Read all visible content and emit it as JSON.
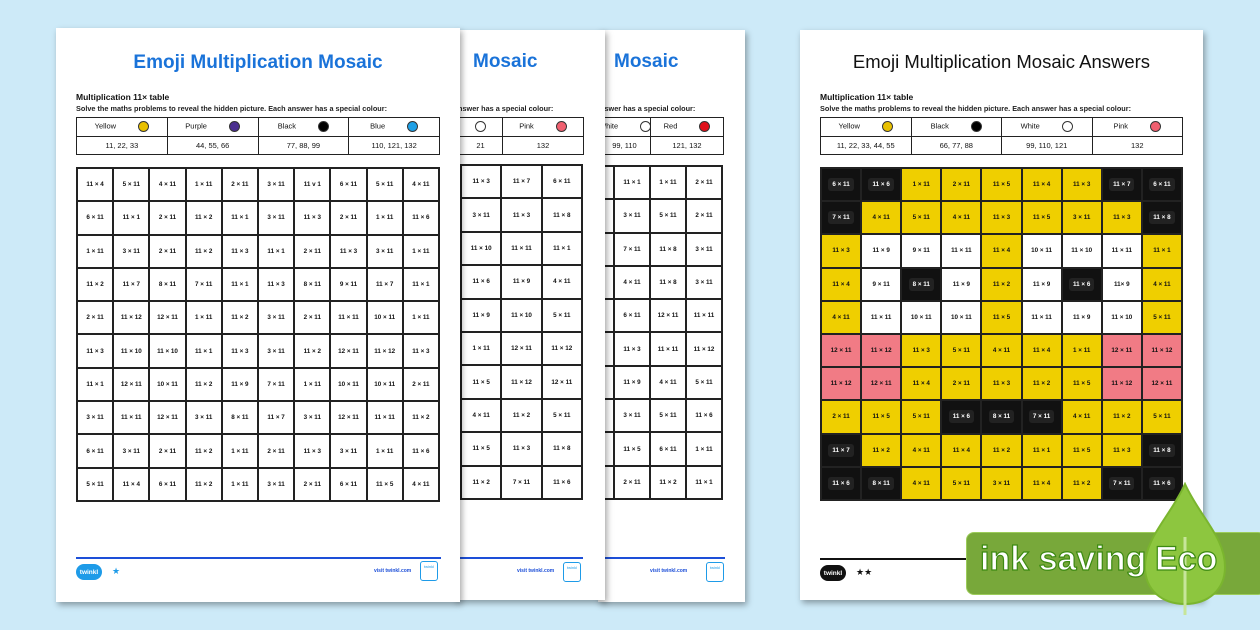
{
  "colors": {
    "background": "#cdeaf8",
    "title_blue": "#1a73d9",
    "yellow": "#efcf00",
    "black": "#111111",
    "white": "#ffffff",
    "pink": "#f17b85",
    "eco_green": "#78a83a",
    "leaf_green": "#8dc63f"
  },
  "sheet1": {
    "title": "Emoji Multiplication Mosaic",
    "subtitle": "Multiplication 11× table",
    "instructions": "Solve the maths problems to reveal the hidden picture. Each answer has a special colour:",
    "key": [
      {
        "label": "Yellow",
        "color": "#e8c000",
        "values": "11, 22, 33"
      },
      {
        "label": "Purple",
        "color": "#4b2f8f",
        "values": "44, 55, 66"
      },
      {
        "label": "Black",
        "color": "#000000",
        "values": "77, 88, 99"
      },
      {
        "label": "Blue",
        "color": "#1ea0e6",
        "values": "110, 121, 132"
      }
    ],
    "grid": [
      [
        "11 × 4",
        "5 × 11",
        "4 × 11",
        "1 × 11",
        "2 × 11",
        "3 × 11",
        "11 v 1",
        "6 × 11",
        "5 × 11",
        "4 × 11"
      ],
      [
        "6 × 11",
        "11 × 1",
        "2 × 11",
        "11 × 2",
        "11 × 1",
        "3 × 11",
        "11 × 3",
        "2 × 11",
        "1 × 11",
        "11 × 6"
      ],
      [
        "1 × 11",
        "3 × 11",
        "2 × 11",
        "11 × 2",
        "11 × 3",
        "11 × 1",
        "2 × 11",
        "11 × 3",
        "3 × 11",
        "1 × 11"
      ],
      [
        "11 × 2",
        "11 × 7",
        "8 × 11",
        "7 × 11",
        "11 × 1",
        "11 × 3",
        "8 × 11",
        "9 × 11",
        "11 × 7",
        "11 × 1"
      ],
      [
        "2 × 11",
        "11 × 12",
        "12 × 11",
        "1 × 11",
        "11 × 2",
        "3 × 11",
        "2 × 11",
        "11 × 11",
        "10 × 11",
        "1 × 11"
      ],
      [
        "11 × 3",
        "11 × 10",
        "11 × 10",
        "11 × 1",
        "11 × 3",
        "3 × 11",
        "11 × 2",
        "12 × 11",
        "11 × 12",
        "11 × 3"
      ],
      [
        "11 × 1",
        "12 × 11",
        "10 × 11",
        "11 × 2",
        "11 × 9",
        "7 × 11",
        "1 × 11",
        "10 × 11",
        "10 × 11",
        "2 × 11"
      ],
      [
        "3 × 11",
        "11 × 11",
        "12 × 11",
        "3 × 11",
        "8 × 11",
        "11 × 7",
        "3 × 11",
        "12 × 11",
        "11 × 11",
        "11 × 2"
      ],
      [
        "6 × 11",
        "3 × 11",
        "2 × 11",
        "11 × 2",
        "1 × 11",
        "2 × 11",
        "11 × 3",
        "3 × 11",
        "1 × 11",
        "11 × 6"
      ],
      [
        "5 × 11",
        "11 × 4",
        "6 × 11",
        "11 × 2",
        "1 × 11",
        "3 × 11",
        "2 × 11",
        "6 × 11",
        "11 × 5",
        "4 × 11"
      ]
    ],
    "logo": "twinkl",
    "stars": "★",
    "visit": "visit twinkl.com"
  },
  "sheet2": {
    "title": "Mosaic",
    "instructions": "nswer has a special colour:",
    "key": [
      {
        "label": "",
        "color": "#ffffff",
        "values": "21"
      },
      {
        "label": "Pink",
        "color": "#f06070",
        "values": "132"
      }
    ],
    "grid": [
      [
        "11 × 3",
        "11 × 7",
        "6 × 11"
      ],
      [
        "3 × 11",
        "11 × 3",
        "11 × 8"
      ],
      [
        "11 × 10",
        "11 × 11",
        "11 × 1"
      ],
      [
        "11 × 6",
        "11 × 9",
        "4 × 11"
      ],
      [
        "11 × 9",
        "11 × 10",
        "5 × 11"
      ],
      [
        "1 × 11",
        "12 × 11",
        "11 × 12"
      ],
      [
        "11 × 5",
        "11 × 12",
        "12 × 11"
      ],
      [
        "4 × 11",
        "11 × 2",
        "5 × 11"
      ],
      [
        "11 × 5",
        "11 × 3",
        "11 × 8"
      ],
      [
        "11 × 2",
        "7 × 11",
        "11 × 6"
      ]
    ],
    "visit": "visit twinkl.com"
  },
  "sheet3": {
    "title": "Mosaic",
    "instructions": "nswer has a special colour:",
    "key": [
      {
        "label": "White",
        "color": "#ffffff",
        "values": "99, 110"
      },
      {
        "label": "Red",
        "color": "#e0101a",
        "values": "121, 132"
      }
    ],
    "grid": [
      [
        "11 × 1",
        "1 × 11",
        "2 × 11"
      ],
      [
        "3 × 11",
        "5 × 11",
        "2 × 11"
      ],
      [
        "7 × 11",
        "11 × 8",
        "3 × 11"
      ],
      [
        "4 × 11",
        "11 × 8",
        "3 × 11"
      ],
      [
        "6 × 11",
        "12 × 11",
        "11 × 11"
      ],
      [
        "11 × 3",
        "11 × 11",
        "11 × 12"
      ],
      [
        "11 × 9",
        "4 × 11",
        "5 × 11"
      ],
      [
        "3 × 11",
        "5 × 11",
        "11 × 6"
      ],
      [
        "11 × 5",
        "6 × 11",
        "1 × 11"
      ],
      [
        "2 × 11",
        "11 × 2",
        "11 × 1"
      ]
    ],
    "visit": "visit twinkl.com"
  },
  "answers": {
    "title": "Emoji Multiplication Mosaic Answers",
    "subtitle": "Multiplication 11× table",
    "instructions": "Solve the maths problems to reveal the hidden picture. Each answer has a special colour:",
    "key": [
      {
        "label": "Yellow",
        "color": "#e8c000",
        "values": "11, 22, 33, 44, 55"
      },
      {
        "label": "Black",
        "color": "#000000",
        "values": "66, 77, 88"
      },
      {
        "label": "White",
        "color": "#ffffff",
        "values": "99, 110, 121"
      },
      {
        "label": "Pink",
        "color": "#f06070",
        "values": "132"
      }
    ],
    "cell_colors": [
      "KKYYYYYKK",
      "KYYYYYYYK",
      "YWWWYWWWY",
      "YWKWYWKWY",
      "YWWWYWWWY",
      "PPYYYYYPP",
      "PPYYYYYPP",
      "YYYKKKYYY",
      "KYYYYYYYK",
      "KKYYYYYKK"
    ],
    "grid": [
      [
        "6 × 11",
        "11 × 6",
        "1 × 11",
        "2 × 11",
        "11 × 5",
        "11 × 4",
        "11 × 3",
        "11 × 7",
        "6 × 11"
      ],
      [
        "7 × 11",
        "4 × 11",
        "5 × 11",
        "4 × 11",
        "11 × 3",
        "11 × 5",
        "3 × 11",
        "11 × 3",
        "11 × 8"
      ],
      [
        "11 × 3",
        "11 × 9",
        "9 × 11",
        "11 × 11",
        "11 × 4",
        "10 × 11",
        "11 × 10",
        "11 × 11",
        "11 × 1"
      ],
      [
        "11 × 4",
        "9 × 11",
        "8 × 11",
        "11 × 9",
        "11 × 2",
        "11 × 9",
        "11 × 6",
        "11× 9",
        "4 × 11"
      ],
      [
        "4 × 11",
        "11 × 11",
        "10 × 11",
        "10 × 11",
        "11 × 5",
        "11 × 11",
        "11 × 9",
        "11 × 10",
        "5 × 11"
      ],
      [
        "12 × 11",
        "11 × 12",
        "11 × 3",
        "5 × 11",
        "4 × 11",
        "11 × 4",
        "1 × 11",
        "12 × 11",
        "11 × 12"
      ],
      [
        "11 × 12",
        "12 × 11",
        "11 × 4",
        "2 × 11",
        "11 × 3",
        "11 × 2",
        "11 × 5",
        "11 × 12",
        "12 × 11"
      ],
      [
        "2 × 11",
        "11 × 5",
        "5 × 11",
        "11 × 6",
        "8 × 11",
        "7 × 11",
        "4 × 11",
        "11 × 2",
        "5 × 11"
      ],
      [
        "11 × 7",
        "11 × 2",
        "4 × 11",
        "11 × 4",
        "11 × 2",
        "11 × 1",
        "11 × 5",
        "11 × 3",
        "11 × 8"
      ],
      [
        "11 × 6",
        "8 × 11",
        "4 × 11",
        "5 × 11",
        "3 × 11",
        "11 × 4",
        "11 × 2",
        "7 × 11",
        "11 × 6"
      ]
    ],
    "logo": "twinkl",
    "stars": "★★"
  },
  "eco_badge": {
    "text": "ink saving",
    "word": "Eco",
    "icon": "leaf-icon"
  }
}
